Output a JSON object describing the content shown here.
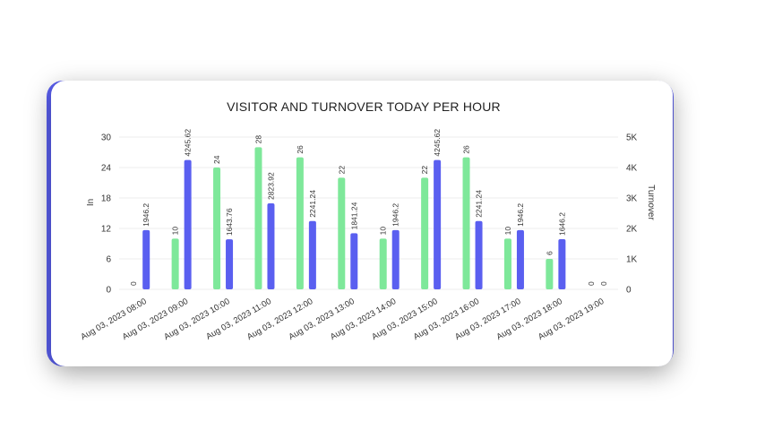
{
  "chart_data": {
    "type": "bar",
    "title": "VISITOR AND TURNOVER TODAY PER HOUR",
    "ylabel_left": "In",
    "ylabel_right": "Turnover",
    "y_left_ticks": [
      "0",
      "6",
      "12",
      "18",
      "24",
      "30"
    ],
    "y_right_ticks": [
      "0",
      "1K",
      "2K",
      "3K",
      "4K",
      "5K"
    ],
    "ylim_left": [
      0,
      30
    ],
    "ylim_right": [
      0,
      5000
    ],
    "grid": true,
    "categories": [
      "Aug 03, 2023 08:00",
      "Aug 03, 2023 09:00",
      "Aug 03, 2023 10:00",
      "Aug 03, 2023 11:00",
      "Aug 03, 2023 12:00",
      "Aug 03, 2023 13:00",
      "Aug 03, 2023 14:00",
      "Aug 03, 2023 15:00",
      "Aug 03, 2023 16:00",
      "Aug 03, 2023 17:00",
      "Aug 03, 2023 18:00",
      "Aug 03, 2023 19:00"
    ],
    "series": [
      {
        "axis": "left",
        "color": "#7ee89a",
        "values": [
          0,
          10,
          24,
          28,
          26,
          22,
          10,
          22,
          26,
          10,
          6,
          0
        ],
        "labels": [
          "0",
          "10",
          "24",
          "28",
          "26",
          "22",
          "10",
          "22",
          "26",
          "10",
          "6",
          "0"
        ]
      },
      {
        "axis": "right",
        "color": "#5a5ff0",
        "values": [
          1946.2,
          4245.62,
          1643.76,
          2823.92,
          2241.24,
          1841.24,
          1946.2,
          4245.62,
          2241.24,
          1946.2,
          1646.2,
          0
        ],
        "labels": [
          "1946.2",
          "4245.62",
          "1643.76",
          "2823.92",
          "2241.24",
          "1841.24",
          "1946.2",
          "4245.62",
          "2241.24",
          "1946.2",
          "1646.2",
          "0"
        ]
      }
    ]
  }
}
